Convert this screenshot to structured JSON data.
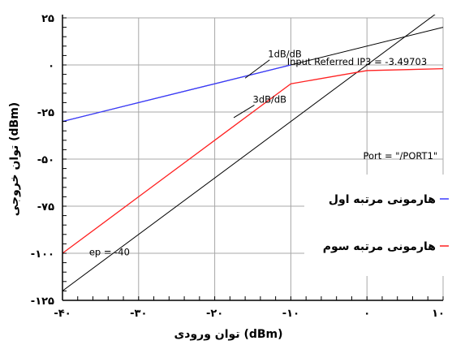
{
  "chart_data": {
    "type": "line",
    "title": "",
    "xlabel": "توان ورودی (dBm)",
    "ylabel": "توان خروجی (dBm)",
    "xlim": [
      -40,
      10
    ],
    "ylim": [
      -125,
      25
    ],
    "x_ticks": [
      -40,
      -30,
      -20,
      -10,
      0,
      10
    ],
    "y_ticks": [
      -125,
      -100,
      -75,
      -50,
      -25,
      0,
      25
    ],
    "x_tick_labels": [
      "-۴۰",
      "-۳۰",
      "-۲۰",
      "-۱۰",
      "۰",
      "۱۰"
    ],
    "y_tick_labels": [
      "-۱۲۵",
      "-۱۰۰",
      "-۷۵",
      "-۵۰",
      "-۲۵",
      "۰",
      "۲۵"
    ],
    "grid": true,
    "legend_position": "right",
    "series": [
      {
        "name": "هارمونی مرتبه اول",
        "color": "#3a3aff",
        "x": [
          -40,
          -30,
          -20,
          -15,
          -10
        ],
        "y": [
          -30,
          -20,
          -10,
          -5,
          0
        ]
      },
      {
        "name": "هارمونی مرتبه سوم",
        "color": "#ff2020",
        "x": [
          -40,
          -30,
          -20,
          -10,
          0,
          10
        ],
        "y": [
          -100,
          -70,
          -40,
          -10,
          -3,
          -2
        ]
      }
    ],
    "reference_lines": [
      {
        "color": "#000000",
        "x": [
          -40,
          10
        ],
        "y": [
          -30,
          20
        ]
      },
      {
        "color": "#000000",
        "x": [
          -40,
          10
        ],
        "y": [
          -120,
          30
        ]
      }
    ],
    "annotations": [
      {
        "text": "1dB/dB",
        "x": -13,
        "y": 4
      },
      {
        "text": "Input Referred IP3 = -3.49703",
        "x": -10.5,
        "y": 0
      },
      {
        "text": "3dB/dB",
        "x": -15,
        "y": -20
      },
      {
        "text": "Port = \"/PORT1\"",
        "x": -0.5,
        "y": -50
      },
      {
        "text": "ep = -40",
        "x": -36.5,
        "y": -101
      }
    ]
  }
}
